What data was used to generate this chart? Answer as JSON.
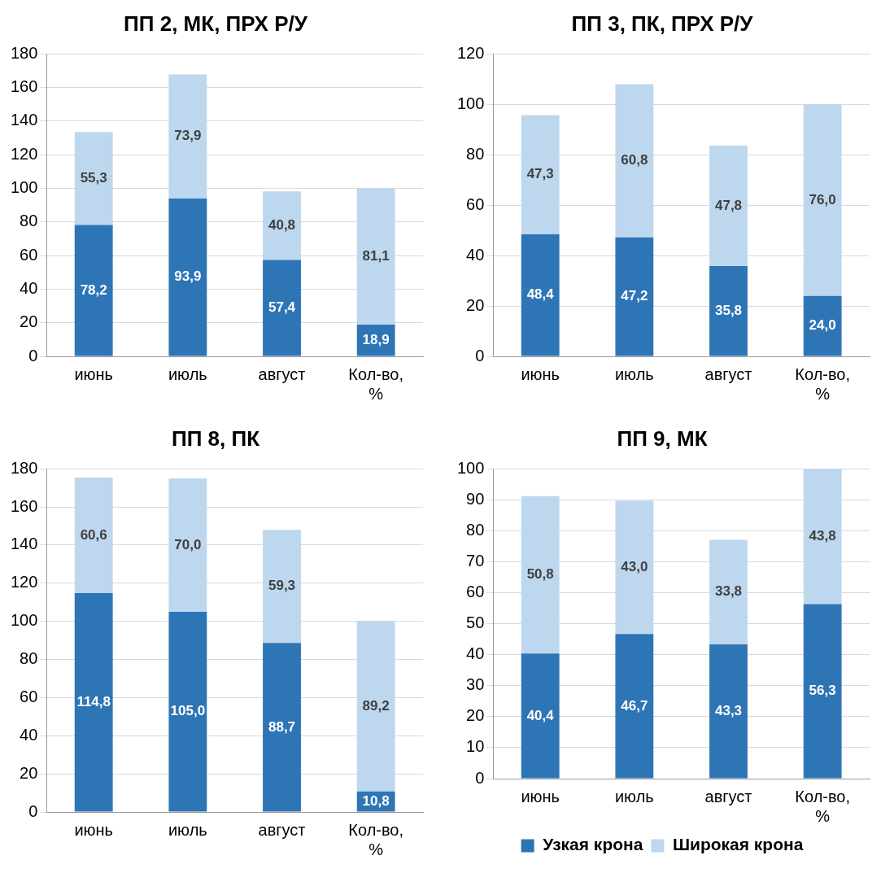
{
  "chart_data": [
    {
      "type": "bar",
      "title": "ПП 2, МК, ПРХ Р/У",
      "categories": [
        "июнь",
        "июль",
        "август",
        "Кол-во, %"
      ],
      "stacked": true,
      "ylim": [
        0,
        180
      ],
      "yticks": [
        0,
        20,
        40,
        60,
        80,
        100,
        120,
        140,
        160,
        180
      ],
      "grid": "y",
      "legend": false,
      "series": [
        {
          "color": "#2e75b6",
          "values": [
            78.2,
            93.9,
            57.4,
            18.9
          ],
          "value_labels": [
            "78,2",
            "93,9",
            "57,4",
            "18,9"
          ]
        },
        {
          "color": "#bdd7ee",
          "values": [
            55.3,
            73.9,
            40.8,
            81.1
          ],
          "value_labels": [
            "55,3",
            "73,9",
            "40,8",
            "81,1"
          ]
        }
      ]
    },
    {
      "type": "bar",
      "title": "ПП 3, ПК, ПРХ Р/У",
      "categories": [
        "июнь",
        "июль",
        "август",
        "Кол-во, %"
      ],
      "stacked": true,
      "ylim": [
        0,
        120
      ],
      "yticks": [
        0,
        20,
        40,
        60,
        80,
        100,
        120
      ],
      "grid": "y",
      "legend": false,
      "series": [
        {
          "color": "#2e75b6",
          "values": [
            48.4,
            47.2,
            35.8,
            24.0
          ],
          "value_labels": [
            "48,4",
            "47,2",
            "35,8",
            "24,0"
          ]
        },
        {
          "color": "#bdd7ee",
          "values": [
            47.3,
            60.8,
            47.8,
            76.0
          ],
          "value_labels": [
            "47,3",
            "60,8",
            "47,8",
            "76,0"
          ]
        }
      ]
    },
    {
      "type": "bar",
      "title": "ПП 8, ПК",
      "categories": [
        "июнь",
        "июль",
        "август",
        "Кол-во, %"
      ],
      "stacked": true,
      "ylim": [
        0,
        180
      ],
      "yticks": [
        0,
        20,
        40,
        60,
        80,
        100,
        120,
        140,
        160,
        180
      ],
      "grid": "y",
      "legend": false,
      "series": [
        {
          "color": "#2e75b6",
          "values": [
            114.8,
            105.0,
            88.7,
            10.8
          ],
          "value_labels": [
            "114,8",
            "105,0",
            "88,7",
            "10,8"
          ]
        },
        {
          "color": "#bdd7ee",
          "values": [
            60.6,
            70.0,
            59.3,
            89.2
          ],
          "value_labels": [
            "60,6",
            "70,0",
            "59,3",
            "89,2"
          ]
        }
      ]
    },
    {
      "type": "bar",
      "title": "ПП 9, МК",
      "categories": [
        "июнь",
        "июль",
        "август",
        "Кол-во, %"
      ],
      "stacked": true,
      "ylim": [
        0,
        100
      ],
      "yticks": [
        0,
        10,
        20,
        30,
        40,
        50,
        60,
        70,
        80,
        90,
        100
      ],
      "grid": "y",
      "legend": "bottom",
      "series": [
        {
          "name": "Узкая крона",
          "color": "#2e75b6",
          "values": [
            40.4,
            46.7,
            43.3,
            56.3
          ],
          "value_labels": [
            "40,4",
            "46,7",
            "43,3",
            "56,3"
          ]
        },
        {
          "name": "Широкая крона",
          "color": "#bdd7ee",
          "values": [
            50.8,
            43.0,
            33.8,
            43.8
          ],
          "value_labels": [
            "50,8",
            "43,0",
            "33,8",
            "43,8"
          ]
        }
      ]
    }
  ]
}
